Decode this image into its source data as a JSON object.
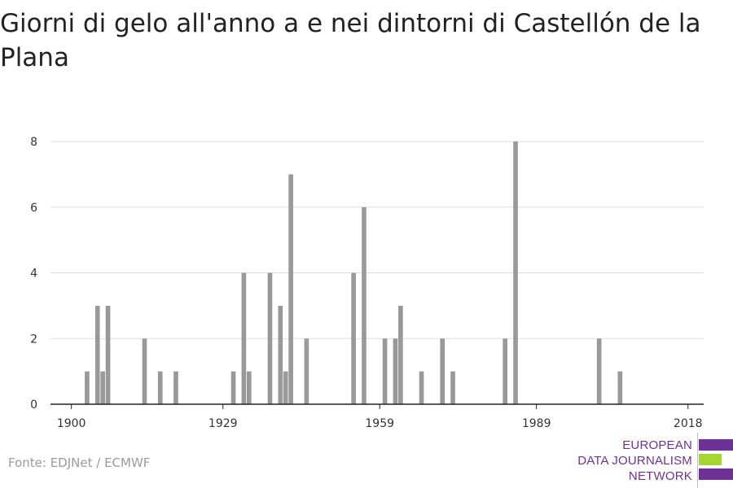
{
  "title": "Giorni di gelo all'anno a e nei dintorni di Castellón de la Plana",
  "source": "Fonte: EDJNet / ECMWF",
  "logo": {
    "line1": "EUROPEAN",
    "line2": "DATA JOURNALISM",
    "line3": "NETWORK",
    "colors": {
      "purple": "#6e3196",
      "green": "#a5d633"
    }
  },
  "chart_data": {
    "type": "bar",
    "title": "Giorni di gelo all'anno a e nei dintorni di Castellón de la Plana",
    "xlabel": "",
    "ylabel": "",
    "xlim": [
      1896,
      2021
    ],
    "ylim": [
      0,
      8
    ],
    "x_ticks": [
      1900,
      1929,
      1959,
      1989,
      2018
    ],
    "y_ticks": [
      0,
      2,
      4,
      6,
      8
    ],
    "grid": true,
    "bar_color": "#999999",
    "x": [
      1903,
      1905,
      1906,
      1907,
      1914,
      1917,
      1920,
      1931,
      1933,
      1934,
      1938,
      1940,
      1941,
      1942,
      1945,
      1954,
      1956,
      1960,
      1962,
      1963,
      1967,
      1971,
      1973,
      1983,
      1985,
      2001,
      2005
    ],
    "values": [
      1,
      3,
      1,
      3,
      2,
      1,
      1,
      1,
      4,
      1,
      4,
      3,
      1,
      7,
      2,
      4,
      6,
      2,
      2,
      3,
      1,
      2,
      1,
      2,
      8,
      2,
      1
    ]
  }
}
